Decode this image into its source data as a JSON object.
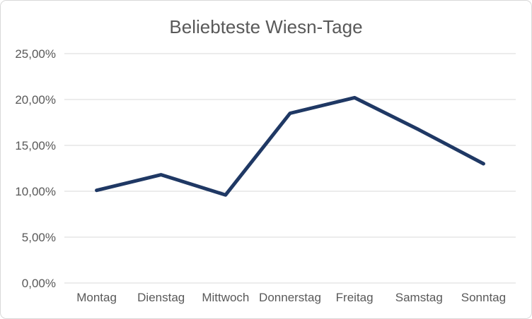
{
  "chart_data": {
    "type": "line",
    "title": "Beliebteste Wiesn-Tage",
    "categories": [
      "Montag",
      "Dienstag",
      "Mittwoch",
      "Donnerstag",
      "Freitag",
      "Samstag",
      "Sonntag"
    ],
    "series": [
      {
        "name": "Beliebteste Wiesn-Tage",
        "values": [
          10.1,
          11.8,
          9.6,
          18.5,
          20.2,
          16.7,
          13.0
        ]
      }
    ],
    "xlabel": "",
    "ylabel": "",
    "ylim": [
      0,
      25
    ],
    "yticks": [
      0,
      5,
      10,
      15,
      20,
      25
    ],
    "ytick_labels": [
      "0,00%",
      "5,00%",
      "10,00%",
      "15,00%",
      "20,00%",
      "25,00%"
    ],
    "value_format": "0,00%",
    "grid": "horizontal",
    "legend": "none",
    "colors": {
      "line": "#1f3864",
      "grid": "#d9d9d9",
      "axis_text": "#595959",
      "title_text": "#595959",
      "border": "#d9d9d9",
      "background": "#ffffff"
    }
  }
}
